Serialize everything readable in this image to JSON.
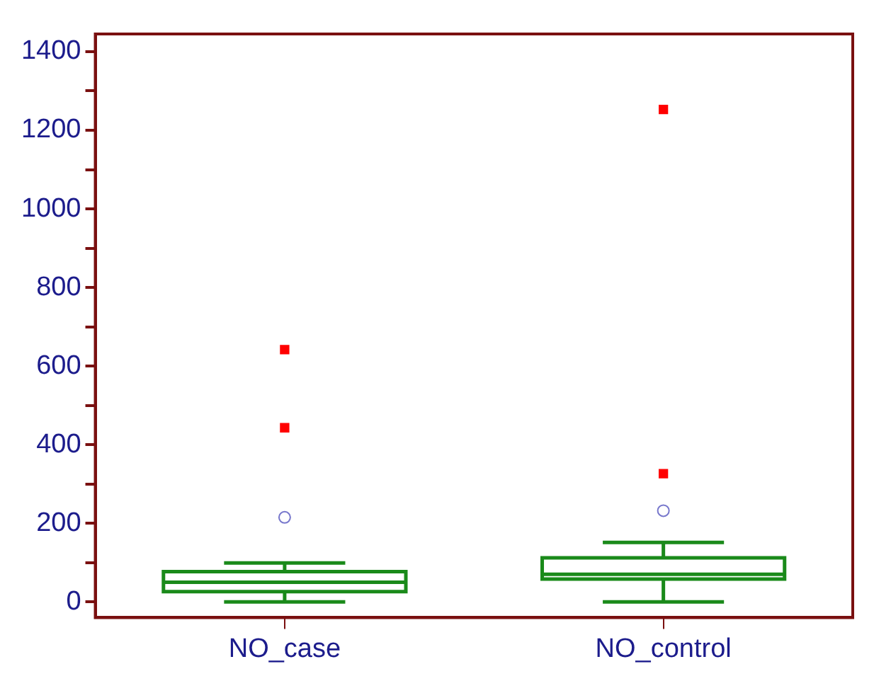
{
  "chart_data": {
    "type": "box",
    "categories": [
      "NO_case",
      "NO_control"
    ],
    "ylim": [
      -40,
      1445
    ],
    "yticks": [
      0,
      {
        "value": 100,
        "label": null
      },
      200,
      {
        "value": 300,
        "label": null
      },
      400,
      {
        "value": 500,
        "label": null
      },
      600,
      {
        "value": 700,
        "label": null
      },
      800,
      {
        "value": 900,
        "label": null
      },
      1000,
      {
        "value": 1100,
        "label": null
      },
      1200,
      {
        "value": 1300,
        "label": null
      },
      1400
    ],
    "grid": false,
    "legend": false,
    "series": [
      {
        "type": "box",
        "color": "#1a8a1a",
        "boxes": [
          {
            "low": 0,
            "q1": 26,
            "median": 50,
            "q3": 77,
            "high": 99,
            "outliers": [
              215
            ]
          },
          {
            "low": 0,
            "q1": 58,
            "median": 70,
            "q3": 112,
            "high": 151,
            "outliers": [
              232
            ]
          }
        ]
      },
      {
        "type": "scatter",
        "color": "#ff0000",
        "marker": "square",
        "x": [
          "NO_case",
          "NO_case",
          "NO_control",
          "NO_control"
        ],
        "values": [
          642,
          443,
          1253,
          326
        ]
      }
    ]
  }
}
